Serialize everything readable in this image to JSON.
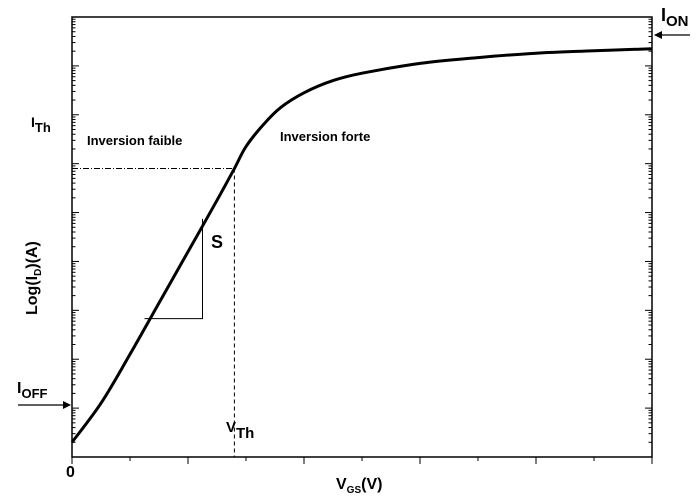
{
  "chart_data": {
    "type": "line",
    "title": "",
    "xlabel": {
      "main": "V",
      "sub": "GS",
      "rest": "(V)"
    },
    "ylabel": {
      "pre": "Log(I",
      "sub": "D",
      "rest": ")(A)"
    },
    "x_tick_labels": [
      "0"
    ],
    "y_scale": "log",
    "series": [
      {
        "points": [
          [
            0.0,
            0.3
          ],
          [
            0.05,
            1.1
          ],
          [
            0.1,
            2.1
          ],
          [
            0.15,
            3.15
          ],
          [
            0.2,
            4.2
          ],
          [
            0.25,
            5.25
          ],
          [
            0.28,
            5.9
          ],
          [
            0.3,
            6.35
          ],
          [
            0.33,
            6.8
          ],
          [
            0.36,
            7.15
          ],
          [
            0.4,
            7.45
          ],
          [
            0.45,
            7.7
          ],
          [
            0.5,
            7.85
          ],
          [
            0.6,
            8.05
          ],
          [
            0.7,
            8.17
          ],
          [
            0.8,
            8.26
          ],
          [
            0.9,
            8.31
          ],
          [
            1.0,
            8.35
          ]
        ]
      }
    ],
    "annotations": {
      "i_on": {
        "main": "I",
        "sub": "ON"
      },
      "i_off": {
        "main": "I",
        "sub": "OFF"
      },
      "i_th": {
        "main": "I",
        "sub": "Th"
      },
      "v_th": {
        "main": "V",
        "sub": "Th"
      },
      "weak_inversion": "Inversion faible",
      "strong_inversion": "Inversion forte",
      "slope": "S"
    },
    "threshold": {
      "x": 0.28,
      "y": 5.9
    },
    "slope_triangle": {
      "x1": 0.125,
      "x2": 0.225,
      "y1": 2.83,
      "y2": 4.87
    },
    "x_range": [
      0,
      1
    ],
    "y_range": [
      0,
      9
    ]
  }
}
